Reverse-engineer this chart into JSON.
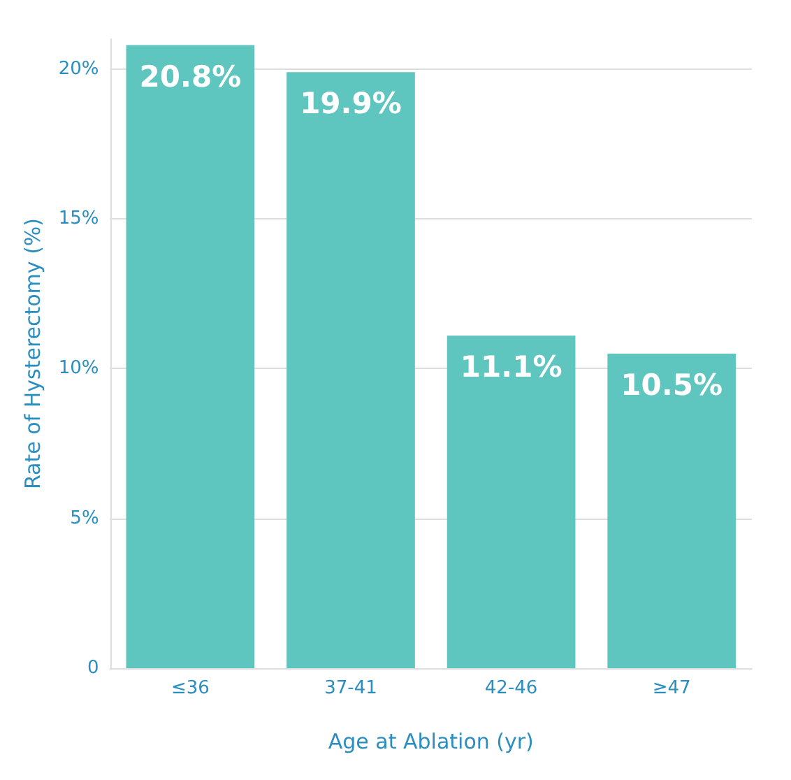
{
  "chart_data": {
    "type": "bar",
    "xlabel": "Age at Ablation (yr)",
    "ylabel": "Rate of Hysterectomy (%)",
    "categories": [
      "≤36",
      "37-41",
      "42-46",
      "≥47"
    ],
    "values": [
      20.8,
      19.9,
      11.1,
      10.5
    ],
    "value_labels": [
      "20.8%",
      "19.9%",
      "11.1%",
      "10.5%"
    ],
    "color": "#5ec6be",
    "ylim": [
      0,
      21
    ],
    "yticks": [
      {
        "value": 0,
        "label": "0"
      },
      {
        "value": 5,
        "label": "5%"
      },
      {
        "value": 10,
        "label": "10%"
      },
      {
        "value": 15,
        "label": "15%"
      },
      {
        "value": 20,
        "label": "20%"
      }
    ],
    "grid": "y"
  }
}
